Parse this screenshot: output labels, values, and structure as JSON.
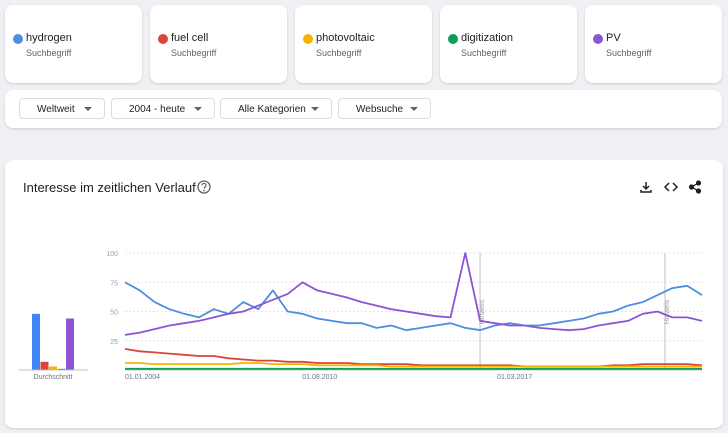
{
  "cards": [
    {
      "subtitle": "Suchbegriff"
    },
    {
      "subtitle": "Suchbegriff"
    },
    {
      "subtitle": "Suchbegriff"
    },
    {
      "subtitle": "Suchbegriff"
    },
    {
      "subtitle": "Suchbegriff"
    }
  ],
  "filters": [
    "Weltweit",
    "2004 - heute",
    "Alle Kategorien",
    "Websuche"
  ],
  "panel_title": "Interesse im zeitlichen Verlauf",
  "chart_data": [
    {
      "type": "bar",
      "x_label": "Durchschnitt",
      "values": [
        48,
        7,
        3,
        1,
        44
      ],
      "colors": [
        "#4285f4",
        "#db4437",
        "#f4b400",
        "#0f9d58",
        "#8c55d1"
      ],
      "ylim": [
        0,
        100
      ]
    },
    {
      "type": "line",
      "x": [
        "01.01.2004",
        "01.07.2004",
        "01.01.2005",
        "01.07.2005",
        "01.01.2006",
        "01.07.2006",
        "01.01.2007",
        "01.07.2007",
        "01.01.2008",
        "01.07.2008",
        "01.01.2009",
        "01.07.2009",
        "01.01.2010",
        "01.07.2010",
        "01.01.2011",
        "01.07.2011",
        "01.01.2012",
        "01.07.2012",
        "01.01.2013",
        "01.07.2013",
        "01.01.2014",
        "01.07.2014",
        "01.01.2015",
        "01.07.2015",
        "01.01.2016",
        "01.07.2016",
        "01.01.2017",
        "01.07.2017",
        "01.01.2018",
        "01.07.2018",
        "01.01.2019",
        "01.07.2019",
        "01.01.2020",
        "01.07.2020",
        "01.01.2021",
        "01.07.2021",
        "01.01.2022",
        "01.07.2022",
        "01.01.2023",
        "01.07.2023"
      ],
      "series": [
        {
          "name": "hydrogen",
          "color": "#4a8fe0",
          "values": [
            75,
            68,
            58,
            52,
            48,
            45,
            52,
            48,
            58,
            52,
            68,
            50,
            48,
            44,
            42,
            40,
            40,
            36,
            38,
            34,
            36,
            38,
            40,
            36,
            34,
            38,
            40,
            38,
            38,
            40,
            42,
            44,
            48,
            50,
            55,
            58,
            64,
            70,
            72,
            64
          ]
        },
        {
          "name": "fuel cell",
          "color": "#db4437",
          "values": [
            18,
            16,
            15,
            14,
            13,
            12,
            12,
            10,
            9,
            8,
            8,
            7,
            7,
            6,
            6,
            6,
            5,
            5,
            5,
            5,
            4,
            4,
            4,
            4,
            4,
            4,
            4,
            3,
            3,
            3,
            3,
            3,
            3,
            4,
            4,
            5,
            5,
            5,
            5,
            4
          ]
        },
        {
          "name": "photovoltaic",
          "color": "#f4b400",
          "values": [
            6,
            6,
            5,
            5,
            5,
            5,
            5,
            5,
            6,
            6,
            5,
            5,
            5,
            4,
            4,
            4,
            4,
            4,
            3,
            3,
            3,
            3,
            3,
            3,
            3,
            3,
            3,
            3,
            3,
            3,
            3,
            3,
            3,
            3,
            3,
            3,
            3,
            3,
            3,
            3
          ]
        },
        {
          "name": "digitization",
          "color": "#0f9d58",
          "values": [
            1,
            1,
            1,
            1,
            1,
            1,
            1,
            1,
            1,
            1,
            1,
            1,
            1,
            1,
            1,
            1,
            1,
            1,
            1,
            1,
            1,
            1,
            1,
            1,
            1,
            1,
            1,
            1,
            1,
            1,
            1,
            1,
            1,
            1,
            1,
            1,
            1,
            1,
            1,
            1
          ]
        },
        {
          "name": "PV",
          "color": "#8c55d1",
          "values": [
            30,
            32,
            35,
            38,
            40,
            42,
            45,
            48,
            50,
            55,
            60,
            65,
            75,
            68,
            65,
            62,
            58,
            55,
            52,
            50,
            48,
            46,
            45,
            100,
            42,
            40,
            38,
            38,
            36,
            35,
            34,
            35,
            38,
            40,
            42,
            48,
            50,
            45,
            45,
            42
          ]
        }
      ],
      "ylim": [
        0,
        100
      ],
      "yticks": [
        25,
        50,
        75,
        100
      ],
      "xticks": [
        "01.01.2004",
        "01.08.2010",
        "01.03.2017"
      ],
      "annotations": [
        {
          "x": "01.01.2016",
          "text": "Hinweis"
        },
        {
          "x": "01.04.2022",
          "text": "Hinweis"
        }
      ],
      "grid": true
    }
  ]
}
